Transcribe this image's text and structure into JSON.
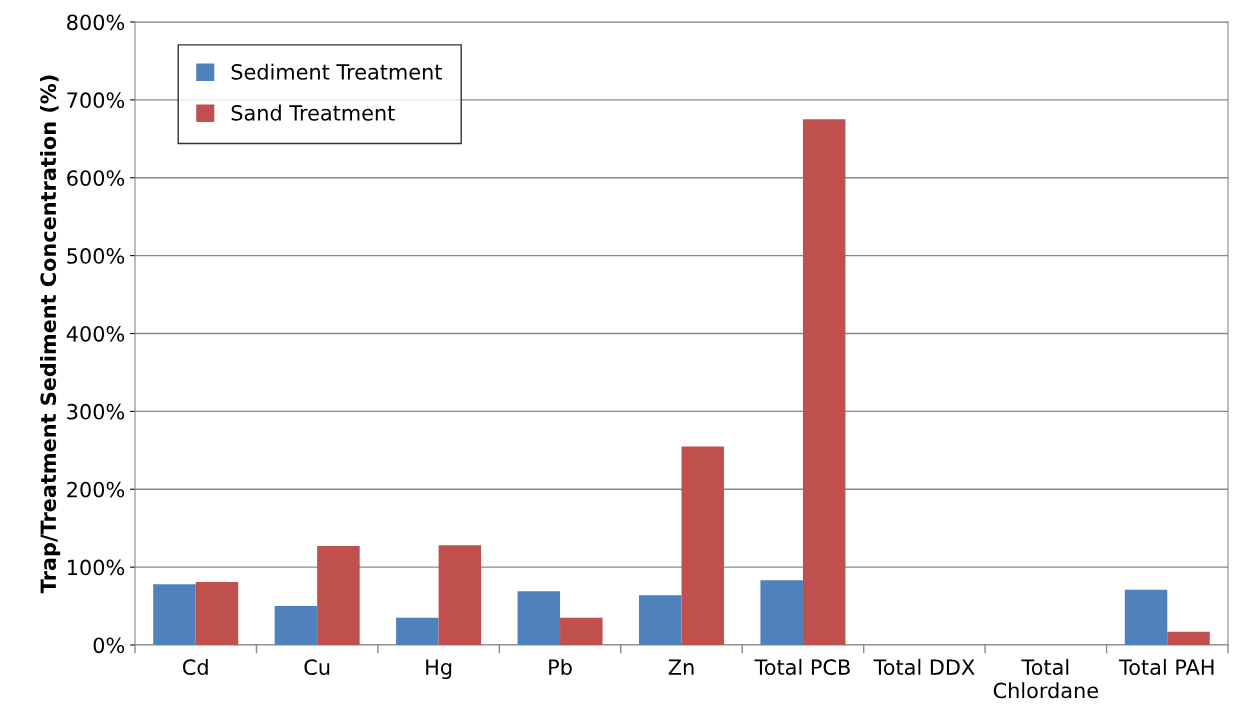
{
  "chart_data": {
    "type": "bar",
    "ylabel": "Trap/Treatment Sediment Concentration (%)",
    "categories": [
      "Cd",
      "Cu",
      "Hg",
      "Pb",
      "Zn",
      "Total PCB",
      "Total DDX",
      "Total\nChlordane",
      "Total PAH"
    ],
    "series": [
      {
        "name": "Sediment Treatment",
        "color": "#4f81bd",
        "values": [
          78,
          50,
          35,
          69,
          64,
          83,
          null,
          null,
          71
        ]
      },
      {
        "name": "Sand Treatment",
        "color": "#c0504d",
        "values": [
          81,
          127,
          128,
          35,
          255,
          675,
          null,
          null,
          17
        ]
      }
    ],
    "ylim": [
      0,
      800
    ],
    "yticks": [
      {
        "value": 0,
        "label": "0%"
      },
      {
        "value": 100,
        "label": "100%"
      },
      {
        "value": 200,
        "label": "200%"
      },
      {
        "value": 300,
        "label": "300%"
      },
      {
        "value": 400,
        "label": "400%"
      },
      {
        "value": 500,
        "label": "500%"
      },
      {
        "value": 600,
        "label": "600%"
      },
      {
        "value": 700,
        "label": "700%"
      },
      {
        "value": 800,
        "label": "800%"
      }
    ],
    "grid": "y",
    "legend": "top left"
  }
}
